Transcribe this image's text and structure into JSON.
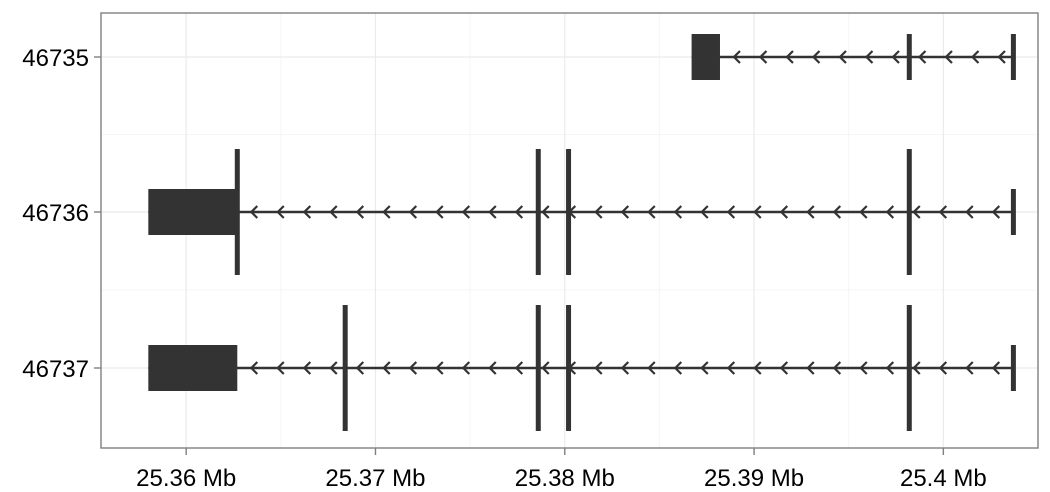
{
  "chart_data": {
    "type": "gene-track",
    "title": "",
    "xlabel": "",
    "ylabel": "",
    "x_unit": "Mb",
    "xlim": [
      25.3555,
      25.405
    ],
    "x_ticks": [
      25.36,
      25.37,
      25.38,
      25.39,
      25.4
    ],
    "x_tick_labels": [
      "25.36 Mb",
      "25.37 Mb",
      "25.38 Mb",
      "25.39 Mb",
      "25.4 Mb"
    ],
    "strand": "minus",
    "grid": true,
    "legend": "none",
    "colors": {
      "feature": "#333333",
      "panel_border": "#7f7f7f",
      "grid_major": "#ebebeb",
      "grid_minor": "#f5f5f5"
    },
    "transcripts": [
      {
        "id": "46735",
        "start": 25.3867,
        "end": 25.4037,
        "utr_blocks": [
          [
            25.3867,
            25.3882
          ]
        ],
        "exon_marks": [
          25.3982,
          25.4037
        ]
      },
      {
        "id": "46736",
        "start": 25.358,
        "end": 25.4037,
        "utr_blocks": [
          [
            25.358,
            25.3627
          ]
        ],
        "exon_marks": [
          25.3627,
          25.3786,
          25.3802,
          25.3982,
          25.4037
        ]
      },
      {
        "id": "46737",
        "start": 25.358,
        "end": 25.4037,
        "utr_blocks": [
          [
            25.358,
            25.3627
          ]
        ],
        "exon_marks": [
          25.3684,
          25.3786,
          25.3802,
          25.3982,
          25.4037
        ]
      }
    ]
  }
}
